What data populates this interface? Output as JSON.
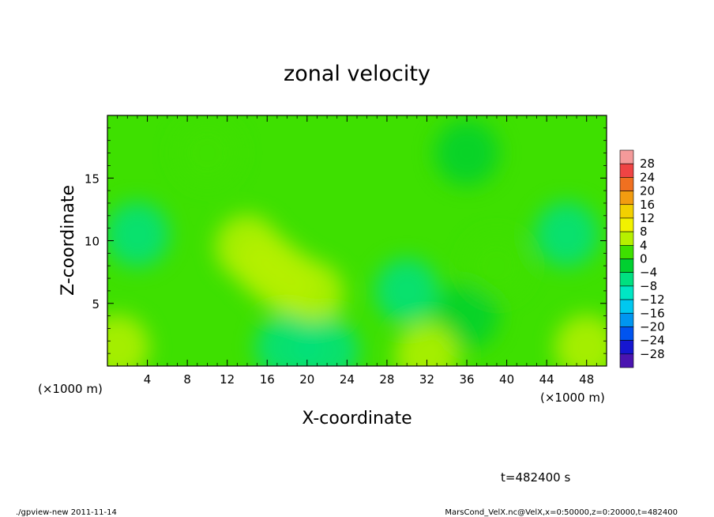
{
  "chart_data": {
    "type": "heatmap",
    "title": "zonal velocity",
    "xlabel": "X-coordinate",
    "ylabel": "Z-coordinate",
    "x_unit_label": "(×1000 m)",
    "xlim": [
      0,
      50
    ],
    "ylim": [
      0,
      20
    ],
    "x_ticks": [
      4,
      8,
      12,
      16,
      20,
      24,
      28,
      32,
      36,
      40,
      44,
      48
    ],
    "y_ticks": [
      5,
      10,
      15
    ],
    "colorbar": {
      "levels": [
        32,
        28,
        24,
        20,
        16,
        12,
        8,
        4,
        0,
        -4,
        -8,
        -12,
        -16,
        -20,
        -24,
        -28,
        -32
      ],
      "labels": [
        "28",
        "24",
        "20",
        "16",
        "12",
        "8",
        "4",
        "0",
        "−4",
        "−8",
        "−12",
        "−16",
        "−20",
        "−24",
        "−28"
      ],
      "colors": [
        "#f49a9a",
        "#ef4444",
        "#f07020",
        "#f29c10",
        "#f2d000",
        "#f2f200",
        "#b6f000",
        "#3ee000",
        "#00d030",
        "#00e080",
        "#00e6c4",
        "#00c8f0",
        "#0096f0",
        "#0054f0",
        "#1616d0",
        "#4a14b0"
      ]
    },
    "background_value": 0,
    "features": [
      {
        "x": 14,
        "z": 9.5,
        "value": 6
      },
      {
        "x": 16,
        "z": 8.0,
        "value": 7
      },
      {
        "x": 18,
        "z": 6.8,
        "value": 7
      },
      {
        "x": 20.5,
        "z": 5.8,
        "value": 7
      },
      {
        "x": 3,
        "z": 10.5,
        "value": -7
      },
      {
        "x": 46,
        "z": 10.5,
        "value": -6
      },
      {
        "x": 18,
        "z": 1.5,
        "value": -8
      },
      {
        "x": 22,
        "z": 1.2,
        "value": -7
      },
      {
        "x": 30,
        "z": 6.0,
        "value": -5
      },
      {
        "x": 36,
        "z": 4.0,
        "value": -4
      },
      {
        "x": 48,
        "z": 1.5,
        "value": 7
      },
      {
        "x": 1,
        "z": 1.5,
        "value": 5
      },
      {
        "x": 32,
        "z": 0.8,
        "value": 5
      },
      {
        "x": 39,
        "z": 8.0,
        "value": 3
      },
      {
        "x": 10,
        "z": 17.0,
        "value": 3
      },
      {
        "x": 36,
        "z": 17.0,
        "value": -3
      }
    ]
  },
  "time_label": "t=482400 s",
  "footer": {
    "left": "./gpview-new  2011-11-14",
    "right": "MarsCond_VelX.nc@VelX,x=0:50000,z=0:20000,t=482400"
  }
}
